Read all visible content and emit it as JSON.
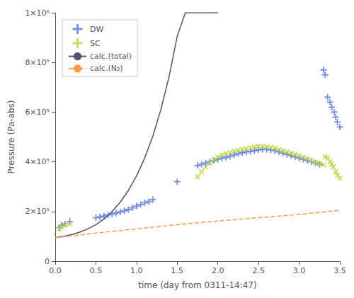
{
  "chart_data": {
    "type": "line",
    "xlabel": "time (day from 0311-14:47)",
    "ylabel": "Pressure (Pa-abs)",
    "xlim": [
      0,
      3.5
    ],
    "ylim": [
      0,
      1000000
    ],
    "xticks": [
      {
        "value": 0,
        "label": "0.0"
      },
      0.5,
      {
        "value": 1.0,
        "label": "1.0"
      },
      1.5,
      {
        "value": 2.0,
        "label": "2.0"
      },
      2.5,
      {
        "value": 3.0,
        "label": "3.0"
      },
      3.5
    ],
    "yticks": [
      0,
      {
        "value": 200000,
        "label": "2×10⁵"
      },
      {
        "value": 400000,
        "label": "4×10⁵"
      },
      {
        "value": 600000,
        "label": "6×10⁵"
      },
      {
        "value": 800000,
        "label": "8×10⁵"
      },
      {
        "value": 1000000,
        "label": "1×10⁶"
      }
    ],
    "grid": false,
    "legend": "upper left",
    "series": [
      {
        "name": "DW",
        "type": "scatter",
        "marker": "plus",
        "x": [
          0.05,
          0.08,
          0.12,
          0.18,
          0.5,
          0.55,
          0.6,
          0.65,
          0.7,
          0.75,
          0.8,
          0.85,
          0.9,
          0.95,
          1.0,
          1.05,
          1.1,
          1.15,
          1.2,
          1.5,
          1.75,
          1.8,
          1.85,
          1.9,
          1.95,
          2.0,
          2.05,
          2.1,
          2.15,
          2.2,
          2.25,
          2.3,
          2.35,
          2.4,
          2.45,
          2.5,
          2.55,
          2.6,
          2.65,
          2.7,
          2.75,
          2.8,
          2.85,
          2.9,
          2.95,
          3.0,
          3.05,
          3.1,
          3.15,
          3.2,
          3.25,
          3.3,
          3.32,
          3.35,
          3.38,
          3.4,
          3.43,
          3.45,
          3.47,
          3.5
        ],
        "values": [
          135000,
          145000,
          150000,
          160000,
          175000,
          178000,
          182000,
          186000,
          190000,
          194000,
          198000,
          203000,
          208000,
          215000,
          222000,
          228000,
          235000,
          240000,
          248000,
          320000,
          385000,
          390000,
          395000,
          400000,
          405000,
          410000,
          415000,
          418000,
          422000,
          428000,
          432000,
          436000,
          440000,
          442000,
          445000,
          448000,
          450000,
          450000,
          448000,
          445000,
          440000,
          435000,
          430000,
          425000,
          420000,
          415000,
          410000,
          405000,
          400000,
          395000,
          390000,
          770000,
          750000,
          660000,
          640000,
          620000,
          600000,
          580000,
          560000,
          540000
        ]
      },
      {
        "name": "SC",
        "type": "scatter",
        "marker": "x",
        "x": [
          0.05,
          0.08,
          0.12,
          0.18,
          1.75,
          1.8,
          1.85,
          1.9,
          1.95,
          2.0,
          2.05,
          2.1,
          2.15,
          2.2,
          2.25,
          2.3,
          2.35,
          2.4,
          2.45,
          2.5,
          2.55,
          2.6,
          2.65,
          2.7,
          2.75,
          2.8,
          2.85,
          2.9,
          2.95,
          3.0,
          3.05,
          3.1,
          3.15,
          3.2,
          3.25,
          3.3,
          3.32,
          3.35,
          3.38,
          3.4,
          3.42,
          3.45,
          3.47,
          3.5
        ],
        "values": [
          130000,
          138000,
          145000,
          150000,
          340000,
          360000,
          380000,
          395000,
          408000,
          418000,
          428000,
          433000,
          438000,
          443000,
          447000,
          450000,
          453000,
          457000,
          460000,
          463000,
          462000,
          460000,
          458000,
          455000,
          450000,
          445000,
          440000,
          435000,
          430000,
          425000,
          418000,
          412000,
          405000,
          398000,
          392000,
          388000,
          420000,
          415000,
          400000,
          390000,
          380000,
          360000,
          345000,
          335000
        ]
      },
      {
        "name": "calc.(total)",
        "type": "line",
        "line_style": "solid",
        "x": [
          0.0,
          0.1,
          0.2,
          0.3,
          0.4,
          0.5,
          0.6,
          0.7,
          0.8,
          0.9,
          1.0,
          1.1,
          1.2,
          1.3,
          1.4,
          1.5,
          1.6,
          1.7,
          1.75,
          1.8,
          1.85,
          1.9,
          1.95,
          2.0
        ],
        "values": [
          95000,
          100000,
          107000,
          117000,
          130000,
          147000,
          170000,
          200000,
          238000,
          285000,
          343000,
          415000,
          503000,
          611000,
          743000,
          905000,
          1000000,
          1000000,
          1000000,
          1000000,
          1000000,
          1000000,
          1000000,
          1000000
        ]
      },
      {
        "name": "calc.(N₂)",
        "type": "line",
        "line_style": "dashed",
        "x": [
          0.0,
          0.5,
          1.0,
          1.5,
          2.0,
          2.5,
          3.0,
          3.5
        ],
        "values": [
          95000,
          113000,
          130000,
          147000,
          162000,
          175000,
          188000,
          205000
        ]
      }
    ]
  }
}
